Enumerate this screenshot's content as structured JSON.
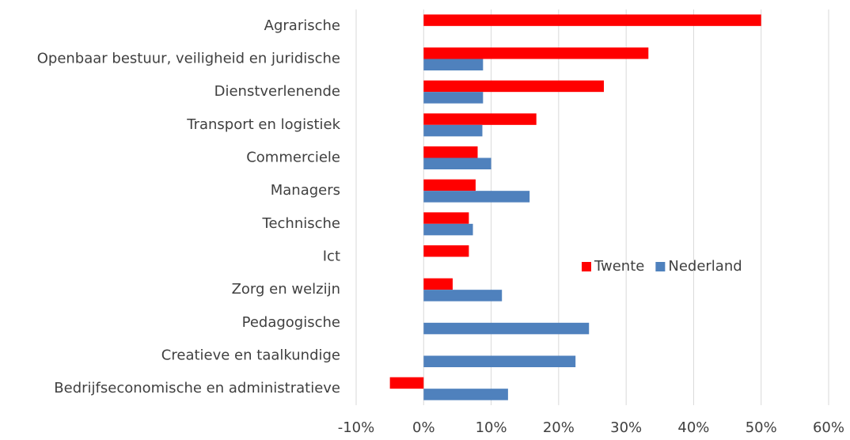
{
  "chart_data": {
    "type": "hbar",
    "categories": [
      "Agrarische",
      "Openbaar bestuur, veiligheid en juridische",
      "Dienstverlenende",
      "Transport en logistiek",
      "Commerciele",
      "Managers",
      "Technische",
      "Ict",
      "Zorg en welzijn",
      "Pedagogische",
      "Creatieve en taalkundige",
      "Bedrijfseconomische en administratieve"
    ],
    "series": [
      {
        "name": "Twente",
        "color": "#ff0000",
        "values": [
          50,
          33.3,
          26.7,
          16.7,
          8,
          7.7,
          6.7,
          6.7,
          4.3,
          null,
          null,
          -5
        ]
      },
      {
        "name": "Nederland",
        "color": "#4f81bd",
        "values": [
          null,
          8.8,
          8.8,
          8.7,
          10,
          15.7,
          7.3,
          null,
          11.6,
          24.5,
          22.5,
          12.5
        ]
      }
    ],
    "xlim": [
      -10,
      60
    ],
    "xticks": [
      {
        "value": -10,
        "label": "-10%"
      },
      {
        "value": 0,
        "label": "0%"
      },
      {
        "value": 10,
        "label": "10%"
      },
      {
        "value": 20,
        "label": "20%"
      },
      {
        "value": 30,
        "label": "30%"
      },
      {
        "value": 40,
        "label": "40%"
      },
      {
        "value": 50,
        "label": "50%"
      },
      {
        "value": 60,
        "label": "60%"
      }
    ],
    "grid": true,
    "legend": "center-right"
  }
}
